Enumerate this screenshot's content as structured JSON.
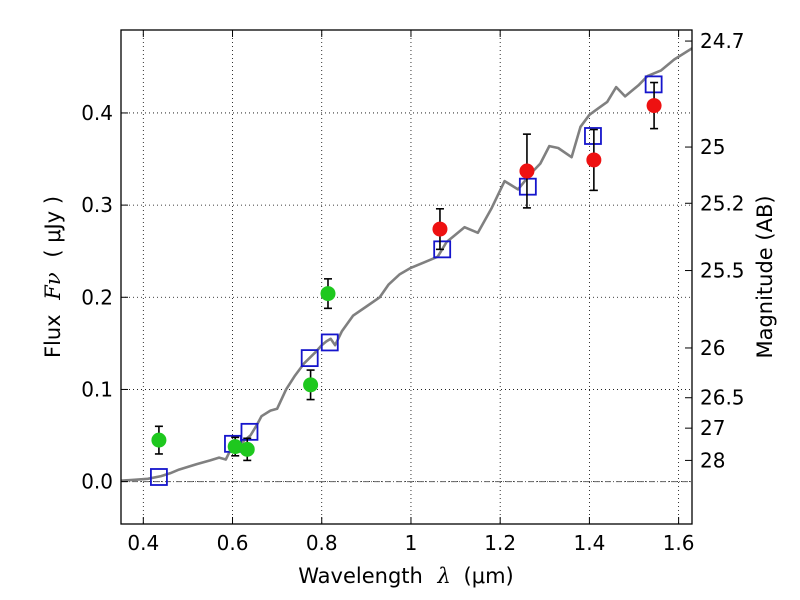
{
  "chart_data": {
    "type": "scatter",
    "title": "",
    "x_axis": {
      "label_prefix": "Wavelength",
      "label_symbol": "λ",
      "label_unit": "(μm)",
      "range": [
        0.35,
        1.63
      ],
      "ticks": [
        0.4,
        0.6,
        0.8,
        1.0,
        1.2,
        1.4,
        1.6
      ],
      "tick_labels": [
        "0.4",
        "0.6",
        "0.8",
        "1",
        "1.2",
        "1.4",
        "1.6"
      ]
    },
    "y_axis": {
      "label_prefix": "Flux",
      "label_symbol": "Fν",
      "label_unit": "( μJy )",
      "range": [
        -0.046,
        0.49
      ],
      "ticks": [
        0.0,
        0.1,
        0.2,
        0.3,
        0.4
      ],
      "tick_labels": [
        "0.0",
        "0.1",
        "0.2",
        "0.3",
        "0.4"
      ]
    },
    "y2_axis": {
      "label": "Magnitude (AB)",
      "ticks": [
        {
          "label": "24.7",
          "flux": 0.478
        },
        {
          "label": "25",
          "flux": 0.363
        },
        {
          "label": "25.2",
          "flux": 0.302
        },
        {
          "label": "25.5",
          "flux": 0.229
        },
        {
          "label": "26",
          "flux": 0.145
        },
        {
          "label": "26.5",
          "flux": 0.091
        },
        {
          "label": "27",
          "flux": 0.058
        },
        {
          "label": "28",
          "flux": 0.023
        }
      ]
    },
    "grid": true,
    "series": [
      {
        "marker": "circle",
        "color": "#1ec81e",
        "points": [
          {
            "x": 0.435,
            "y": 0.045,
            "err": 0.015
          },
          {
            "x": 0.606,
            "y": 0.038,
            "err": 0.01
          },
          {
            "x": 0.633,
            "y": 0.035,
            "err": 0.012
          },
          {
            "x": 0.775,
            "y": 0.105,
            "err": 0.016
          },
          {
            "x": 0.814,
            "y": 0.204,
            "err": 0.016
          }
        ]
      },
      {
        "marker": "circle",
        "color": "#ee1111",
        "points": [
          {
            "x": 1.065,
            "y": 0.274,
            "err": 0.022
          },
          {
            "x": 1.26,
            "y": 0.337,
            "err": 0.04
          },
          {
            "x": 1.41,
            "y": 0.349,
            "err": 0.033
          },
          {
            "x": 1.545,
            "y": 0.408,
            "err": 0.025
          }
        ]
      },
      {
        "marker": "open-square",
        "color": "#1515cc",
        "points": [
          {
            "x": 0.435,
            "y": 0.005
          },
          {
            "x": 0.601,
            "y": 0.041
          },
          {
            "x": 0.638,
            "y": 0.054
          },
          {
            "x": 0.773,
            "y": 0.134
          },
          {
            "x": 0.818,
            "y": 0.151
          },
          {
            "x": 1.07,
            "y": 0.252
          },
          {
            "x": 1.262,
            "y": 0.32
          },
          {
            "x": 1.408,
            "y": 0.375
          },
          {
            "x": 1.544,
            "y": 0.431
          }
        ]
      },
      {
        "marker": "line",
        "color": "#808080",
        "points": [
          [
            0.35,
            0.001
          ],
          [
            0.38,
            0.002
          ],
          [
            0.41,
            0.003
          ],
          [
            0.44,
            0.006
          ],
          [
            0.46,
            0.009
          ],
          [
            0.48,
            0.013
          ],
          [
            0.5,
            0.016
          ],
          [
            0.52,
            0.019
          ],
          [
            0.55,
            0.023
          ],
          [
            0.57,
            0.026
          ],
          [
            0.585,
            0.024
          ],
          [
            0.595,
            0.034
          ],
          [
            0.62,
            0.042
          ],
          [
            0.64,
            0.05
          ],
          [
            0.655,
            0.062
          ],
          [
            0.665,
            0.071
          ],
          [
            0.685,
            0.077
          ],
          [
            0.7,
            0.079
          ],
          [
            0.72,
            0.1
          ],
          [
            0.74,
            0.115
          ],
          [
            0.76,
            0.128
          ],
          [
            0.785,
            0.14
          ],
          [
            0.8,
            0.148
          ],
          [
            0.81,
            0.152
          ],
          [
            0.82,
            0.155
          ],
          [
            0.83,
            0.148
          ],
          [
            0.845,
            0.163
          ],
          [
            0.87,
            0.18
          ],
          [
            0.9,
            0.19
          ],
          [
            0.93,
            0.2
          ],
          [
            0.95,
            0.214
          ],
          [
            0.975,
            0.225
          ],
          [
            1.0,
            0.232
          ],
          [
            1.03,
            0.238
          ],
          [
            1.06,
            0.244
          ],
          [
            1.08,
            0.26
          ],
          [
            1.1,
            0.268
          ],
          [
            1.12,
            0.276
          ],
          [
            1.15,
            0.27
          ],
          [
            1.18,
            0.296
          ],
          [
            1.21,
            0.326
          ],
          [
            1.24,
            0.317
          ],
          [
            1.27,
            0.335
          ],
          [
            1.29,
            0.345
          ],
          [
            1.31,
            0.364
          ],
          [
            1.33,
            0.362
          ],
          [
            1.36,
            0.352
          ],
          [
            1.38,
            0.385
          ],
          [
            1.4,
            0.398
          ],
          [
            1.42,
            0.405
          ],
          [
            1.44,
            0.412
          ],
          [
            1.46,
            0.428
          ],
          [
            1.48,
            0.418
          ],
          [
            1.51,
            0.43
          ],
          [
            1.53,
            0.44
          ],
          [
            1.56,
            0.446
          ],
          [
            1.59,
            0.458
          ],
          [
            1.63,
            0.47
          ]
        ]
      }
    ]
  }
}
